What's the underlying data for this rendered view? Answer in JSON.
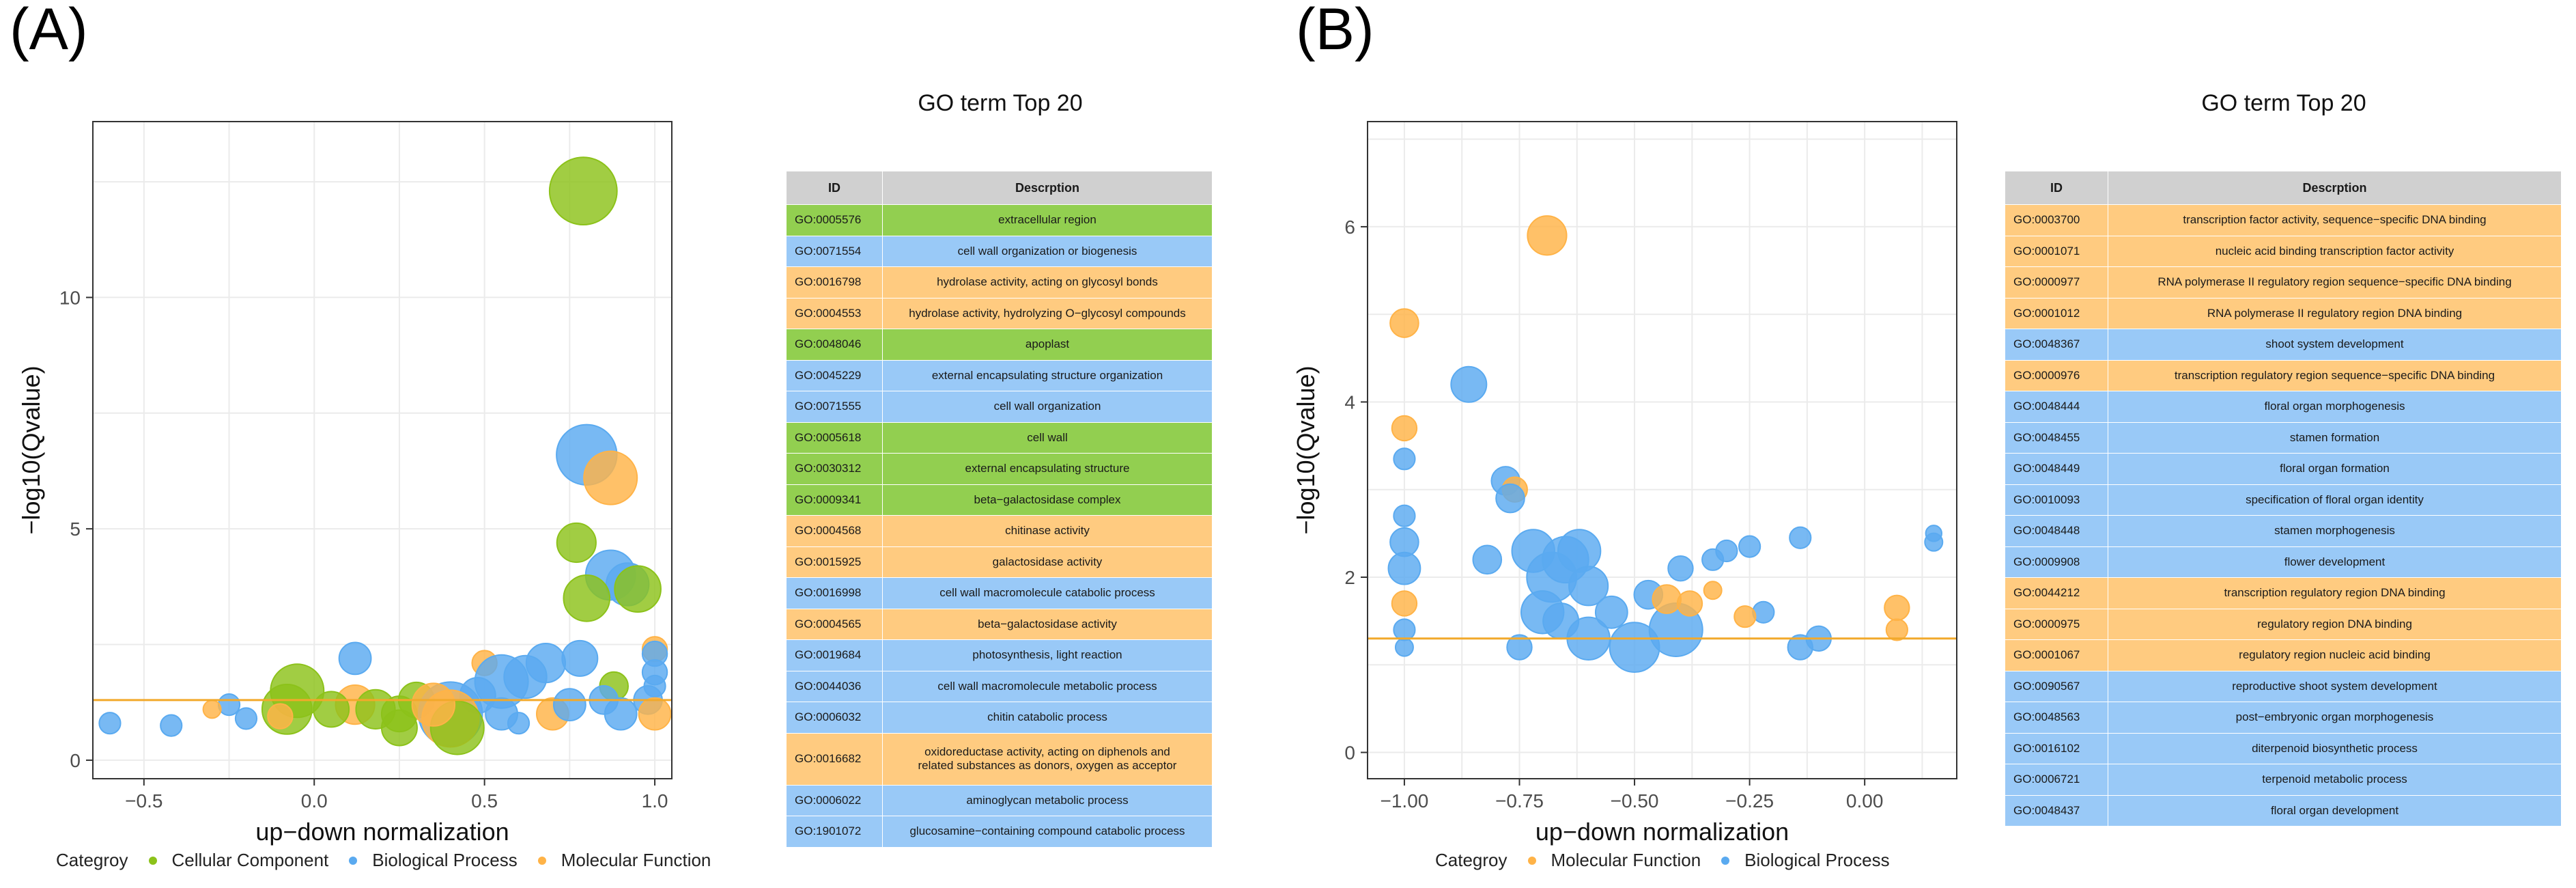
{
  "colors": {
    "cellular": "#8cc21a",
    "biological": "#5aaaf0",
    "molecular": "#ffb347",
    "threshold": "#f2a92b",
    "grid": "#ebebeb",
    "table_header": "#d0d0d0",
    "row_cc": "#92cf50",
    "row_bp": "#99c9f7",
    "row_mf": "#ffcb80"
  },
  "panels": [
    {
      "label": "(A)",
      "table_title": "GO term Top 20",
      "table_headers": [
        "ID",
        "Descrption"
      ],
      "rows": [
        {
          "id": "GO:0005576",
          "desc": "extracellular region",
          "cat": "cc"
        },
        {
          "id": "GO:0071554",
          "desc": "cell wall organization or biogenesis",
          "cat": "bp"
        },
        {
          "id": "GO:0016798",
          "desc": "hydrolase activity, acting on glycosyl bonds",
          "cat": "mf"
        },
        {
          "id": "GO:0004553",
          "desc": "hydrolase activity, hydrolyzing O−glycosyl compounds",
          "cat": "mf"
        },
        {
          "id": "GO:0048046",
          "desc": "apoplast",
          "cat": "cc"
        },
        {
          "id": "GO:0045229",
          "desc": "external encapsulating structure organization",
          "cat": "bp"
        },
        {
          "id": "GO:0071555",
          "desc": "cell wall organization",
          "cat": "bp"
        },
        {
          "id": "GO:0005618",
          "desc": "cell wall",
          "cat": "cc"
        },
        {
          "id": "GO:0030312",
          "desc": "external encapsulating structure",
          "cat": "cc"
        },
        {
          "id": "GO:0009341",
          "desc": "beta−galactosidase complex",
          "cat": "cc"
        },
        {
          "id": "GO:0004568",
          "desc": "chitinase activity",
          "cat": "mf"
        },
        {
          "id": "GO:0015925",
          "desc": "galactosidase activity",
          "cat": "mf"
        },
        {
          "id": "GO:0016998",
          "desc": "cell wall macromolecule catabolic process",
          "cat": "bp"
        },
        {
          "id": "GO:0004565",
          "desc": "beta−galactosidase activity",
          "cat": "mf"
        },
        {
          "id": "GO:0019684",
          "desc": "photosynthesis, light reaction",
          "cat": "bp"
        },
        {
          "id": "GO:0044036",
          "desc": "cell wall macromolecule metabolic process",
          "cat": "bp"
        },
        {
          "id": "GO:0006032",
          "desc": "chitin catabolic process",
          "cat": "bp"
        },
        {
          "id": "GO:0016682",
          "desc": "oxidoreductase activity, acting on diphenols and\nrelated substances as donors, oxygen as acceptor",
          "cat": "mf"
        },
        {
          "id": "GO:0006022",
          "desc": "aminoglycan metabolic process",
          "cat": "bp"
        },
        {
          "id": "GO:1901072",
          "desc": "glucosamine−containing compound catabolic process",
          "cat": "bp"
        }
      ],
      "legend_title": "Categroy",
      "legend": [
        {
          "label": "Cellular Component",
          "cat": "cc"
        },
        {
          "label": "Biological Process",
          "cat": "bp"
        },
        {
          "label": "Molecular Function",
          "cat": "mf"
        }
      ]
    },
    {
      "label": "(B)",
      "table_title": "GO term Top 20",
      "table_headers": [
        "ID",
        "Descrption"
      ],
      "rows": [
        {
          "id": "GO:0003700",
          "desc": "transcription factor activity, sequence−specific DNA binding",
          "cat": "mf"
        },
        {
          "id": "GO:0001071",
          "desc": "nucleic acid binding transcription factor activity",
          "cat": "mf"
        },
        {
          "id": "GO:0000977",
          "desc": "RNA polymerase II regulatory region sequence−specific DNA binding",
          "cat": "mf"
        },
        {
          "id": "GO:0001012",
          "desc": "RNA polymerase II regulatory region DNA binding",
          "cat": "mf"
        },
        {
          "id": "GO:0048367",
          "desc": "shoot system development",
          "cat": "bp"
        },
        {
          "id": "GO:0000976",
          "desc": "transcription regulatory region sequence−specific DNA binding",
          "cat": "mf"
        },
        {
          "id": "GO:0048444",
          "desc": "floral organ morphogenesis",
          "cat": "bp"
        },
        {
          "id": "GO:0048455",
          "desc": "stamen formation",
          "cat": "bp"
        },
        {
          "id": "GO:0048449",
          "desc": "floral organ formation",
          "cat": "bp"
        },
        {
          "id": "GO:0010093",
          "desc": "specification of floral organ identity",
          "cat": "bp"
        },
        {
          "id": "GO:0048448",
          "desc": "stamen morphogenesis",
          "cat": "bp"
        },
        {
          "id": "GO:0009908",
          "desc": "flower development",
          "cat": "bp"
        },
        {
          "id": "GO:0044212",
          "desc": "transcription regulatory region DNA binding",
          "cat": "mf"
        },
        {
          "id": "GO:0000975",
          "desc": "regulatory region DNA binding",
          "cat": "mf"
        },
        {
          "id": "GO:0001067",
          "desc": "regulatory region nucleic acid binding",
          "cat": "mf"
        },
        {
          "id": "GO:0090567",
          "desc": "reproductive shoot system development",
          "cat": "bp"
        },
        {
          "id": "GO:0048563",
          "desc": "post−embryonic organ morphogenesis",
          "cat": "bp"
        },
        {
          "id": "GO:0016102",
          "desc": "diterpenoid biosynthetic process",
          "cat": "bp"
        },
        {
          "id": "GO:0006721",
          "desc": "terpenoid metabolic process",
          "cat": "bp"
        },
        {
          "id": "GO:0048437",
          "desc": "floral organ development",
          "cat": "bp"
        }
      ],
      "legend_title": "Categroy",
      "legend": [
        {
          "label": "Molecular Function",
          "cat": "mf"
        },
        {
          "label": "Biological Process",
          "cat": "bp"
        }
      ]
    }
  ],
  "chart_data": [
    {
      "type": "scatter",
      "subtype": "bubble",
      "panel": "(A)",
      "xlabel": "up−down normalization",
      "ylabel": "−log10(Qvalue)",
      "xlim": [
        -0.65,
        1.05
      ],
      "ylim": [
        -0.4,
        13.8
      ],
      "xticks": [
        -0.5,
        0.0,
        0.5,
        1.0
      ],
      "xtick_labels": [
        "−0.5",
        "0.0",
        "0.5",
        "1.0"
      ],
      "yticks": [
        0,
        5,
        10
      ],
      "ytick_labels": [
        "0",
        "5",
        "10"
      ],
      "threshold": 1.3,
      "grid": true,
      "points": [
        {
          "x": 0.79,
          "y": 12.3,
          "s": 1.9,
          "cat": "cc"
        },
        {
          "x": 0.8,
          "y": 6.6,
          "s": 1.7,
          "cat": "bp"
        },
        {
          "x": 0.87,
          "y": 6.1,
          "s": 1.5,
          "cat": "mf"
        },
        {
          "x": 0.77,
          "y": 4.7,
          "s": 1.1,
          "cat": "cc"
        },
        {
          "x": 0.87,
          "y": 4.0,
          "s": 1.4,
          "cat": "bp"
        },
        {
          "x": 0.92,
          "y": 3.8,
          "s": 1.2,
          "cat": "bp"
        },
        {
          "x": 0.95,
          "y": 3.7,
          "s": 1.3,
          "cat": "cc"
        },
        {
          "x": 0.8,
          "y": 3.5,
          "s": 1.3,
          "cat": "cc"
        },
        {
          "x": 1.0,
          "y": 2.4,
          "s": 0.7,
          "cat": "mf"
        },
        {
          "x": 1.0,
          "y": 2.3,
          "s": 0.7,
          "cat": "bp"
        },
        {
          "x": 0.78,
          "y": 2.2,
          "s": 1.0,
          "cat": "bp"
        },
        {
          "x": 0.68,
          "y": 2.1,
          "s": 1.1,
          "cat": "bp"
        },
        {
          "x": 0.12,
          "y": 2.2,
          "s": 0.9,
          "cat": "bp"
        },
        {
          "x": 0.5,
          "y": 2.1,
          "s": 0.7,
          "cat": "mf"
        },
        {
          "x": 0.62,
          "y": 1.8,
          "s": 1.2,
          "cat": "bp"
        },
        {
          "x": 0.55,
          "y": 1.7,
          "s": 1.5,
          "cat": "bp"
        },
        {
          "x": 0.88,
          "y": 1.6,
          "s": 0.8,
          "cat": "cc"
        },
        {
          "x": 1.0,
          "y": 1.9,
          "s": 0.7,
          "cat": "bp"
        },
        {
          "x": 1.0,
          "y": 1.6,
          "s": 0.6,
          "cat": "bp"
        },
        {
          "x": 0.48,
          "y": 1.4,
          "s": 1.0,
          "cat": "bp"
        },
        {
          "x": 0.3,
          "y": 1.3,
          "s": 1.0,
          "cat": "cc"
        },
        {
          "x": 0.12,
          "y": 1.2,
          "s": 1.1,
          "cat": "mf"
        },
        {
          "x": -0.05,
          "y": 1.5,
          "s": 1.5,
          "cat": "cc"
        },
        {
          "x": -0.08,
          "y": 1.1,
          "s": 1.4,
          "cat": "cc"
        },
        {
          "x": 0.05,
          "y": 1.1,
          "s": 1.0,
          "cat": "cc"
        },
        {
          "x": 0.18,
          "y": 1.1,
          "s": 1.1,
          "cat": "cc"
        },
        {
          "x": 0.25,
          "y": 1.0,
          "s": 1.0,
          "cat": "cc"
        },
        {
          "x": 0.4,
          "y": 1.0,
          "s": 1.8,
          "cat": "bp"
        },
        {
          "x": 0.4,
          "y": 0.9,
          "s": 1.6,
          "cat": "mf"
        },
        {
          "x": 0.42,
          "y": 0.7,
          "s": 1.5,
          "cat": "cc"
        },
        {
          "x": 0.25,
          "y": 0.7,
          "s": 1.0,
          "cat": "cc"
        },
        {
          "x": 0.35,
          "y": 1.2,
          "s": 1.2,
          "cat": "mf"
        },
        {
          "x": 0.7,
          "y": 1.0,
          "s": 0.9,
          "cat": "mf"
        },
        {
          "x": 0.75,
          "y": 1.2,
          "s": 0.9,
          "cat": "bp"
        },
        {
          "x": 0.85,
          "y": 1.3,
          "s": 0.8,
          "cat": "bp"
        },
        {
          "x": 0.9,
          "y": 1.0,
          "s": 0.9,
          "cat": "bp"
        },
        {
          "x": 0.98,
          "y": 1.3,
          "s": 0.8,
          "cat": "bp"
        },
        {
          "x": 1.0,
          "y": 1.0,
          "s": 0.9,
          "cat": "mf"
        },
        {
          "x": -0.1,
          "y": 0.95,
          "s": 0.7,
          "cat": "mf"
        },
        {
          "x": -0.2,
          "y": 0.9,
          "s": 0.6,
          "cat": "bp"
        },
        {
          "x": -0.25,
          "y": 1.2,
          "s": 0.6,
          "cat": "bp"
        },
        {
          "x": -0.3,
          "y": 1.1,
          "s": 0.5,
          "cat": "mf"
        },
        {
          "x": -0.42,
          "y": 0.75,
          "s": 0.6,
          "cat": "bp"
        },
        {
          "x": -0.6,
          "y": 0.8,
          "s": 0.6,
          "cat": "bp"
        },
        {
          "x": 0.6,
          "y": 0.8,
          "s": 0.6,
          "cat": "bp"
        },
        {
          "x": 0.55,
          "y": 1.0,
          "s": 0.9,
          "cat": "bp"
        }
      ]
    },
    {
      "type": "scatter",
      "subtype": "bubble",
      "panel": "(B)",
      "xlabel": "up−down normalization",
      "ylabel": "−log10(Qvalue)",
      "xlim": [
        -1.08,
        0.2
      ],
      "ylim": [
        -0.3,
        7.2
      ],
      "xticks": [
        -1.0,
        -0.75,
        -0.5,
        -0.25,
        0.0
      ],
      "xtick_labels": [
        "−1.00",
        "−0.75",
        "−0.50",
        "−0.25",
        "0.00"
      ],
      "yticks": [
        0,
        2,
        4,
        6
      ],
      "ytick_labels": [
        "0",
        "2",
        "4",
        "6"
      ],
      "threshold": 1.3,
      "grid": true,
      "points": [
        {
          "x": -0.69,
          "y": 5.9,
          "s": 1.1,
          "cat": "mf"
        },
        {
          "x": -1.0,
          "y": 4.9,
          "s": 0.8,
          "cat": "mf"
        },
        {
          "x": -0.86,
          "y": 4.2,
          "s": 1.0,
          "cat": "bp"
        },
        {
          "x": -1.0,
          "y": 3.7,
          "s": 0.7,
          "cat": "mf"
        },
        {
          "x": -1.0,
          "y": 3.35,
          "s": 0.6,
          "cat": "bp"
        },
        {
          "x": -0.78,
          "y": 3.1,
          "s": 0.8,
          "cat": "bp"
        },
        {
          "x": -0.76,
          "y": 3.0,
          "s": 0.7,
          "cat": "mf"
        },
        {
          "x": -0.77,
          "y": 2.9,
          "s": 0.8,
          "cat": "bp"
        },
        {
          "x": -1.0,
          "y": 2.7,
          "s": 0.6,
          "cat": "bp"
        },
        {
          "x": -1.0,
          "y": 2.4,
          "s": 0.8,
          "cat": "bp"
        },
        {
          "x": -1.0,
          "y": 2.1,
          "s": 0.9,
          "cat": "bp"
        },
        {
          "x": -1.0,
          "y": 1.7,
          "s": 0.7,
          "cat": "mf"
        },
        {
          "x": -1.0,
          "y": 1.4,
          "s": 0.6,
          "cat": "bp"
        },
        {
          "x": -1.0,
          "y": 1.2,
          "s": 0.5,
          "cat": "bp"
        },
        {
          "x": -0.82,
          "y": 2.2,
          "s": 0.8,
          "cat": "bp"
        },
        {
          "x": -0.72,
          "y": 2.3,
          "s": 1.2,
          "cat": "bp"
        },
        {
          "x": -0.68,
          "y": 2.0,
          "s": 1.4,
          "cat": "bp"
        },
        {
          "x": -0.65,
          "y": 2.2,
          "s": 1.3,
          "cat": "bp"
        },
        {
          "x": -0.62,
          "y": 2.3,
          "s": 1.2,
          "cat": "bp"
        },
        {
          "x": -0.6,
          "y": 1.9,
          "s": 1.1,
          "cat": "bp"
        },
        {
          "x": -0.7,
          "y": 1.6,
          "s": 1.2,
          "cat": "bp"
        },
        {
          "x": -0.66,
          "y": 1.5,
          "s": 1.0,
          "cat": "bp"
        },
        {
          "x": -0.75,
          "y": 1.2,
          "s": 0.7,
          "cat": "bp"
        },
        {
          "x": -0.6,
          "y": 1.3,
          "s": 1.2,
          "cat": "bp"
        },
        {
          "x": -0.5,
          "y": 1.2,
          "s": 1.4,
          "cat": "bp"
        },
        {
          "x": -0.41,
          "y": 1.4,
          "s": 1.5,
          "cat": "bp"
        },
        {
          "x": -0.47,
          "y": 1.8,
          "s": 0.8,
          "cat": "bp"
        },
        {
          "x": -0.43,
          "y": 1.75,
          "s": 0.8,
          "cat": "mf"
        },
        {
          "x": -0.38,
          "y": 1.7,
          "s": 0.7,
          "cat": "mf"
        },
        {
          "x": -0.33,
          "y": 1.85,
          "s": 0.5,
          "cat": "mf"
        },
        {
          "x": -0.4,
          "y": 2.1,
          "s": 0.7,
          "cat": "bp"
        },
        {
          "x": -0.33,
          "y": 2.2,
          "s": 0.6,
          "cat": "bp"
        },
        {
          "x": -0.3,
          "y": 2.3,
          "s": 0.6,
          "cat": "bp"
        },
        {
          "x": -0.25,
          "y": 2.35,
          "s": 0.6,
          "cat": "bp"
        },
        {
          "x": -0.14,
          "y": 2.45,
          "s": 0.6,
          "cat": "bp"
        },
        {
          "x": -0.22,
          "y": 1.6,
          "s": 0.6,
          "cat": "bp"
        },
        {
          "x": -0.26,
          "y": 1.55,
          "s": 0.6,
          "cat": "mf"
        },
        {
          "x": -0.14,
          "y": 1.2,
          "s": 0.7,
          "cat": "bp"
        },
        {
          "x": -0.1,
          "y": 1.3,
          "s": 0.7,
          "cat": "bp"
        },
        {
          "x": 0.07,
          "y": 1.65,
          "s": 0.7,
          "cat": "mf"
        },
        {
          "x": 0.07,
          "y": 1.4,
          "s": 0.6,
          "cat": "mf"
        },
        {
          "x": 0.15,
          "y": 2.4,
          "s": 0.5,
          "cat": "bp"
        },
        {
          "x": 0.15,
          "y": 2.5,
          "s": 0.45,
          "cat": "bp"
        },
        {
          "x": -0.55,
          "y": 1.6,
          "s": 0.9,
          "cat": "bp"
        }
      ]
    }
  ]
}
